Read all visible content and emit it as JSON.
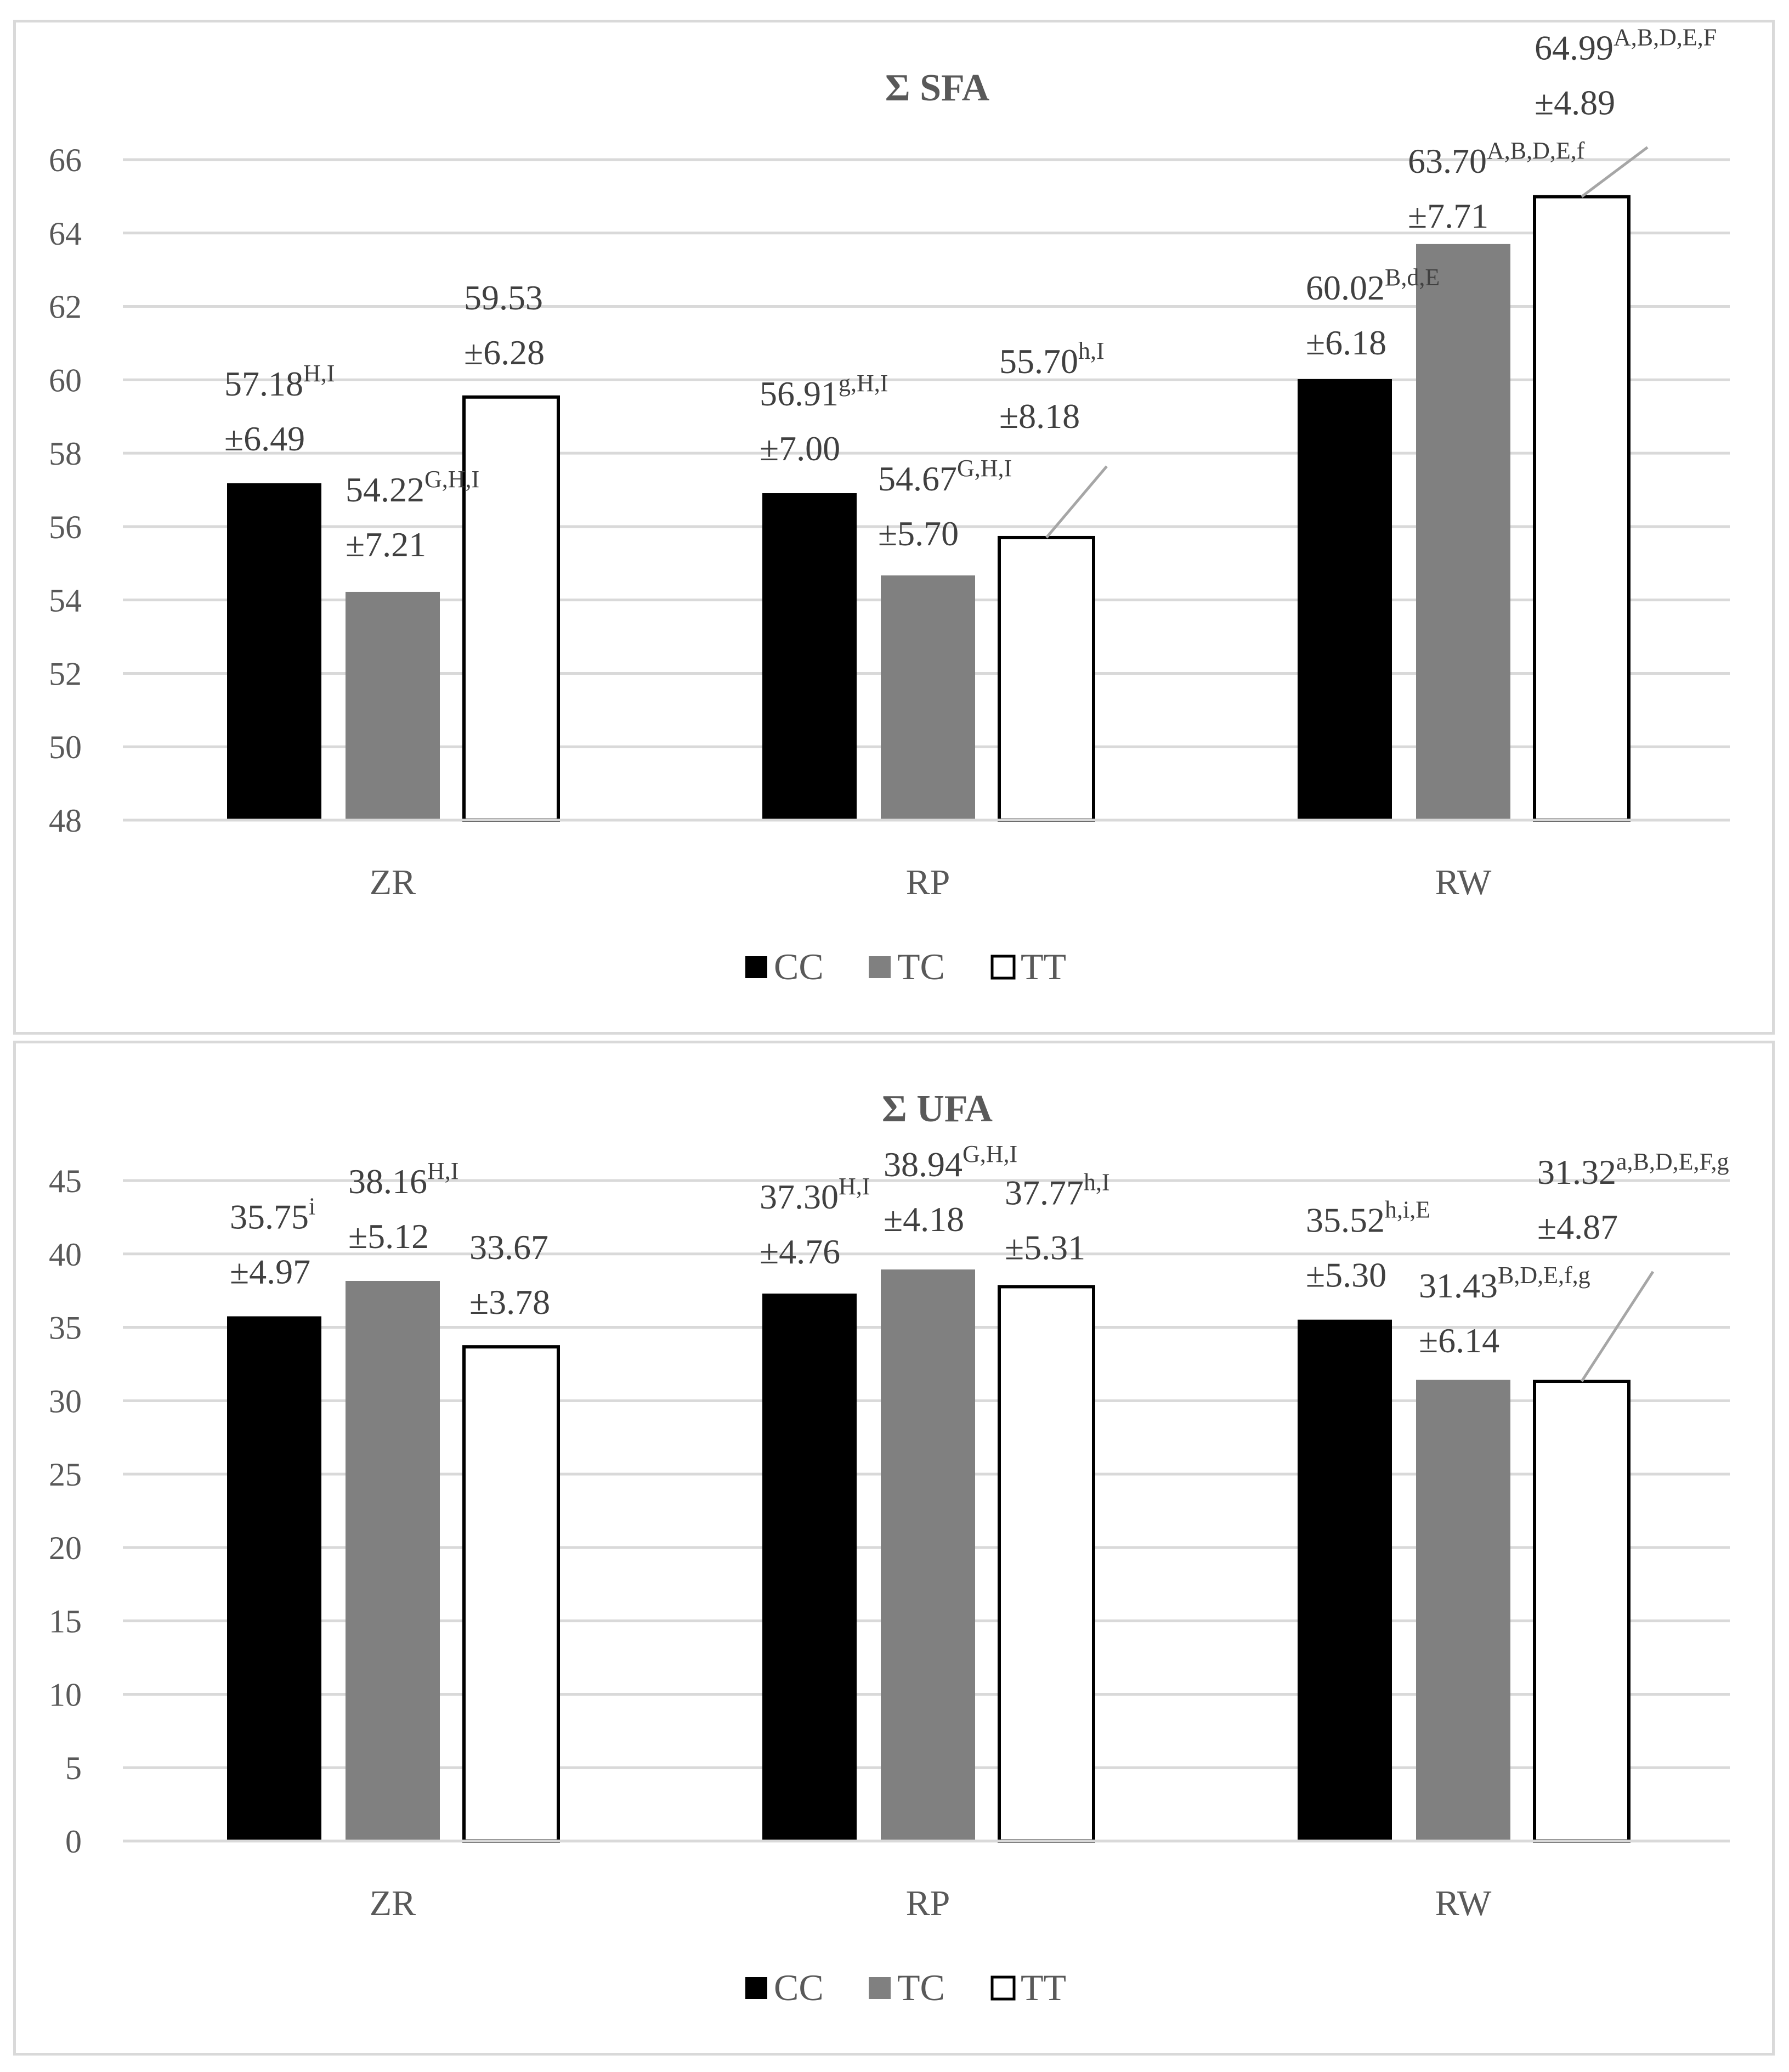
{
  "chart_data": [
    {
      "type": "bar",
      "title": "Σ SFA",
      "categories": [
        "ZR",
        "RP",
        "RW"
      ],
      "ylim": [
        48,
        66
      ],
      "ytick_step": 2,
      "grid": true,
      "legend_position": "bottom",
      "series": [
        {
          "name": "CC",
          "color": "#000000",
          "values": [
            57.18,
            56.91,
            60.02
          ],
          "labels": [
            [
              "57.18",
              "H,I"
            ],
            [
              "56.91",
              "g,H,I"
            ],
            [
              "60.02",
              "B,d,E"
            ]
          ],
          "sd": [
            "±6.49",
            "±7.00",
            "±6.18"
          ]
        },
        {
          "name": "TC",
          "color": "#808080",
          "values": [
            54.22,
            54.67,
            63.7
          ],
          "labels": [
            [
              "54.22",
              "G,H,I"
            ],
            [
              "54.67",
              "G,H,I"
            ],
            [
              "63.70",
              "A,B,D,E,f"
            ]
          ],
          "sd": [
            "±7.21",
            "±5.70",
            "±7.71"
          ]
        },
        {
          "name": "TT",
          "color": "#ffffff",
          "values": [
            59.53,
            55.7,
            64.99
          ],
          "labels": [
            [
              "59.53",
              ""
            ],
            [
              "55.70",
              "h,I"
            ],
            [
              "64.99",
              "A,B,D,E,F"
            ]
          ],
          "sd": [
            "±6.28",
            "±8.18",
            "±4.89"
          ]
        }
      ]
    },
    {
      "type": "bar",
      "title": "Σ UFA",
      "categories": [
        "ZR",
        "RP",
        "RW"
      ],
      "ylim": [
        0,
        45
      ],
      "ytick_step": 5,
      "grid": true,
      "legend_position": "bottom",
      "series": [
        {
          "name": "CC",
          "color": "#000000",
          "values": [
            35.75,
            37.3,
            35.52
          ],
          "labels": [
            [
              "35.75",
              "i"
            ],
            [
              "37.30",
              "H,I"
            ],
            [
              "35.52",
              "h,i,E"
            ]
          ],
          "sd": [
            "±4.97",
            "±4.76",
            "±5.30"
          ]
        },
        {
          "name": "TC",
          "color": "#808080",
          "values": [
            38.16,
            38.94,
            31.43
          ],
          "labels": [
            [
              "38.16",
              "H,I"
            ],
            [
              "38.94",
              "G,H,I"
            ],
            [
              "31.43",
              "B,D,E,f,g"
            ]
          ],
          "sd": [
            "±5.12",
            "±4.18",
            "±6.14"
          ]
        },
        {
          "name": "TT",
          "color": "#ffffff",
          "values": [
            33.67,
            37.77,
            31.32
          ],
          "labels": [
            [
              "33.67",
              ""
            ],
            [
              "37.77",
              "h,I"
            ],
            [
              "31.32",
              "a,B,D,E,F,g"
            ]
          ],
          "sd": [
            "±3.78",
            "±5.31",
            "±4.87"
          ]
        }
      ]
    }
  ]
}
